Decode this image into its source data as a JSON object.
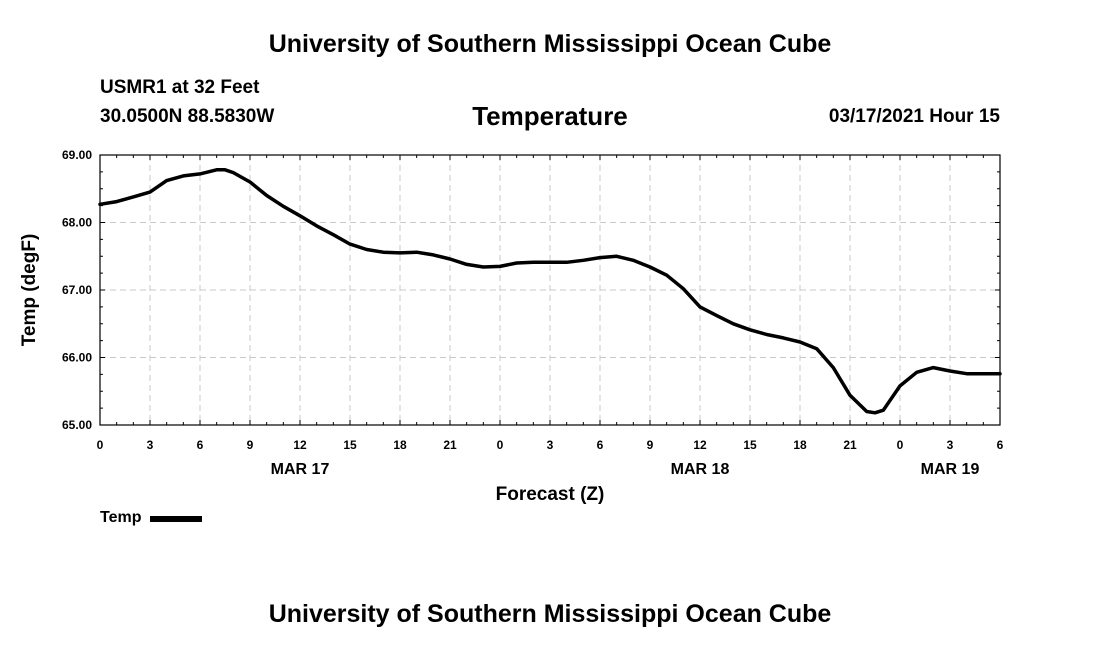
{
  "header": {
    "title": "University of Southern Mississippi Ocean Cube",
    "station": "USMR1 at 32 Feet",
    "coords": "30.0500N 88.5830W",
    "datetime": "03/17/2021 Hour 15"
  },
  "footer": {
    "title": "University of Southern Mississippi Ocean Cube"
  },
  "colors": {
    "line": "#000000",
    "grid": "#c8c8c8",
    "frame": "#000000"
  },
  "chart_data": {
    "type": "line",
    "title": "Temperature",
    "xlabel": "Forecast (Z)",
    "ylabel": "Temp (degF)",
    "xlim": [
      0,
      54
    ],
    "ylim": [
      65.0,
      69.0
    ],
    "x_ticks": [
      0,
      3,
      6,
      9,
      12,
      15,
      18,
      21,
      24,
      27,
      30,
      33,
      36,
      39,
      42,
      45,
      48,
      51,
      54
    ],
    "x_tick_labels": [
      "0",
      "3",
      "6",
      "9",
      "12",
      "15",
      "18",
      "21",
      "0",
      "3",
      "6",
      "9",
      "12",
      "15",
      "18",
      "21",
      "0",
      "3",
      "6"
    ],
    "y_ticks": [
      65,
      66,
      67,
      68,
      69
    ],
    "y_tick_labels": [
      "65.00",
      "66.00",
      "67.00",
      "68.00",
      "69.00"
    ],
    "date_labels": [
      {
        "x": 12,
        "label": "MAR 17"
      },
      {
        "x": 36,
        "label": "MAR 18"
      },
      {
        "x": 51,
        "label": "MAR 19"
      }
    ],
    "grid": true,
    "legend_position": "bottom-left",
    "series": [
      {
        "name": "Temp",
        "x": [
          0,
          1,
          2,
          3,
          4,
          5,
          6,
          7,
          7.5,
          8,
          9,
          10,
          11,
          12,
          13,
          14,
          15,
          16,
          17,
          18,
          19,
          20,
          21,
          22,
          23,
          24,
          25,
          26,
          27,
          28,
          29,
          30,
          31,
          32,
          33,
          34,
          35,
          36,
          37,
          38,
          39,
          40,
          41,
          42,
          43,
          44,
          45,
          46,
          46.5,
          47,
          48,
          49,
          50,
          51,
          52,
          53,
          54
        ],
        "values": [
          68.27,
          68.31,
          68.38,
          68.45,
          68.62,
          68.69,
          68.72,
          68.78,
          68.78,
          68.74,
          68.6,
          68.4,
          68.24,
          68.1,
          67.95,
          67.82,
          67.68,
          67.6,
          67.56,
          67.55,
          67.56,
          67.52,
          67.46,
          67.38,
          67.34,
          67.35,
          67.4,
          67.41,
          67.41,
          67.41,
          67.44,
          67.48,
          67.5,
          67.44,
          67.34,
          67.22,
          67.02,
          66.75,
          66.62,
          66.5,
          66.41,
          66.34,
          66.29,
          66.23,
          66.13,
          65.85,
          65.44,
          65.2,
          65.18,
          65.22,
          65.58,
          65.78,
          65.85,
          65.8,
          65.76,
          65.76,
          65.76
        ]
      }
    ]
  }
}
